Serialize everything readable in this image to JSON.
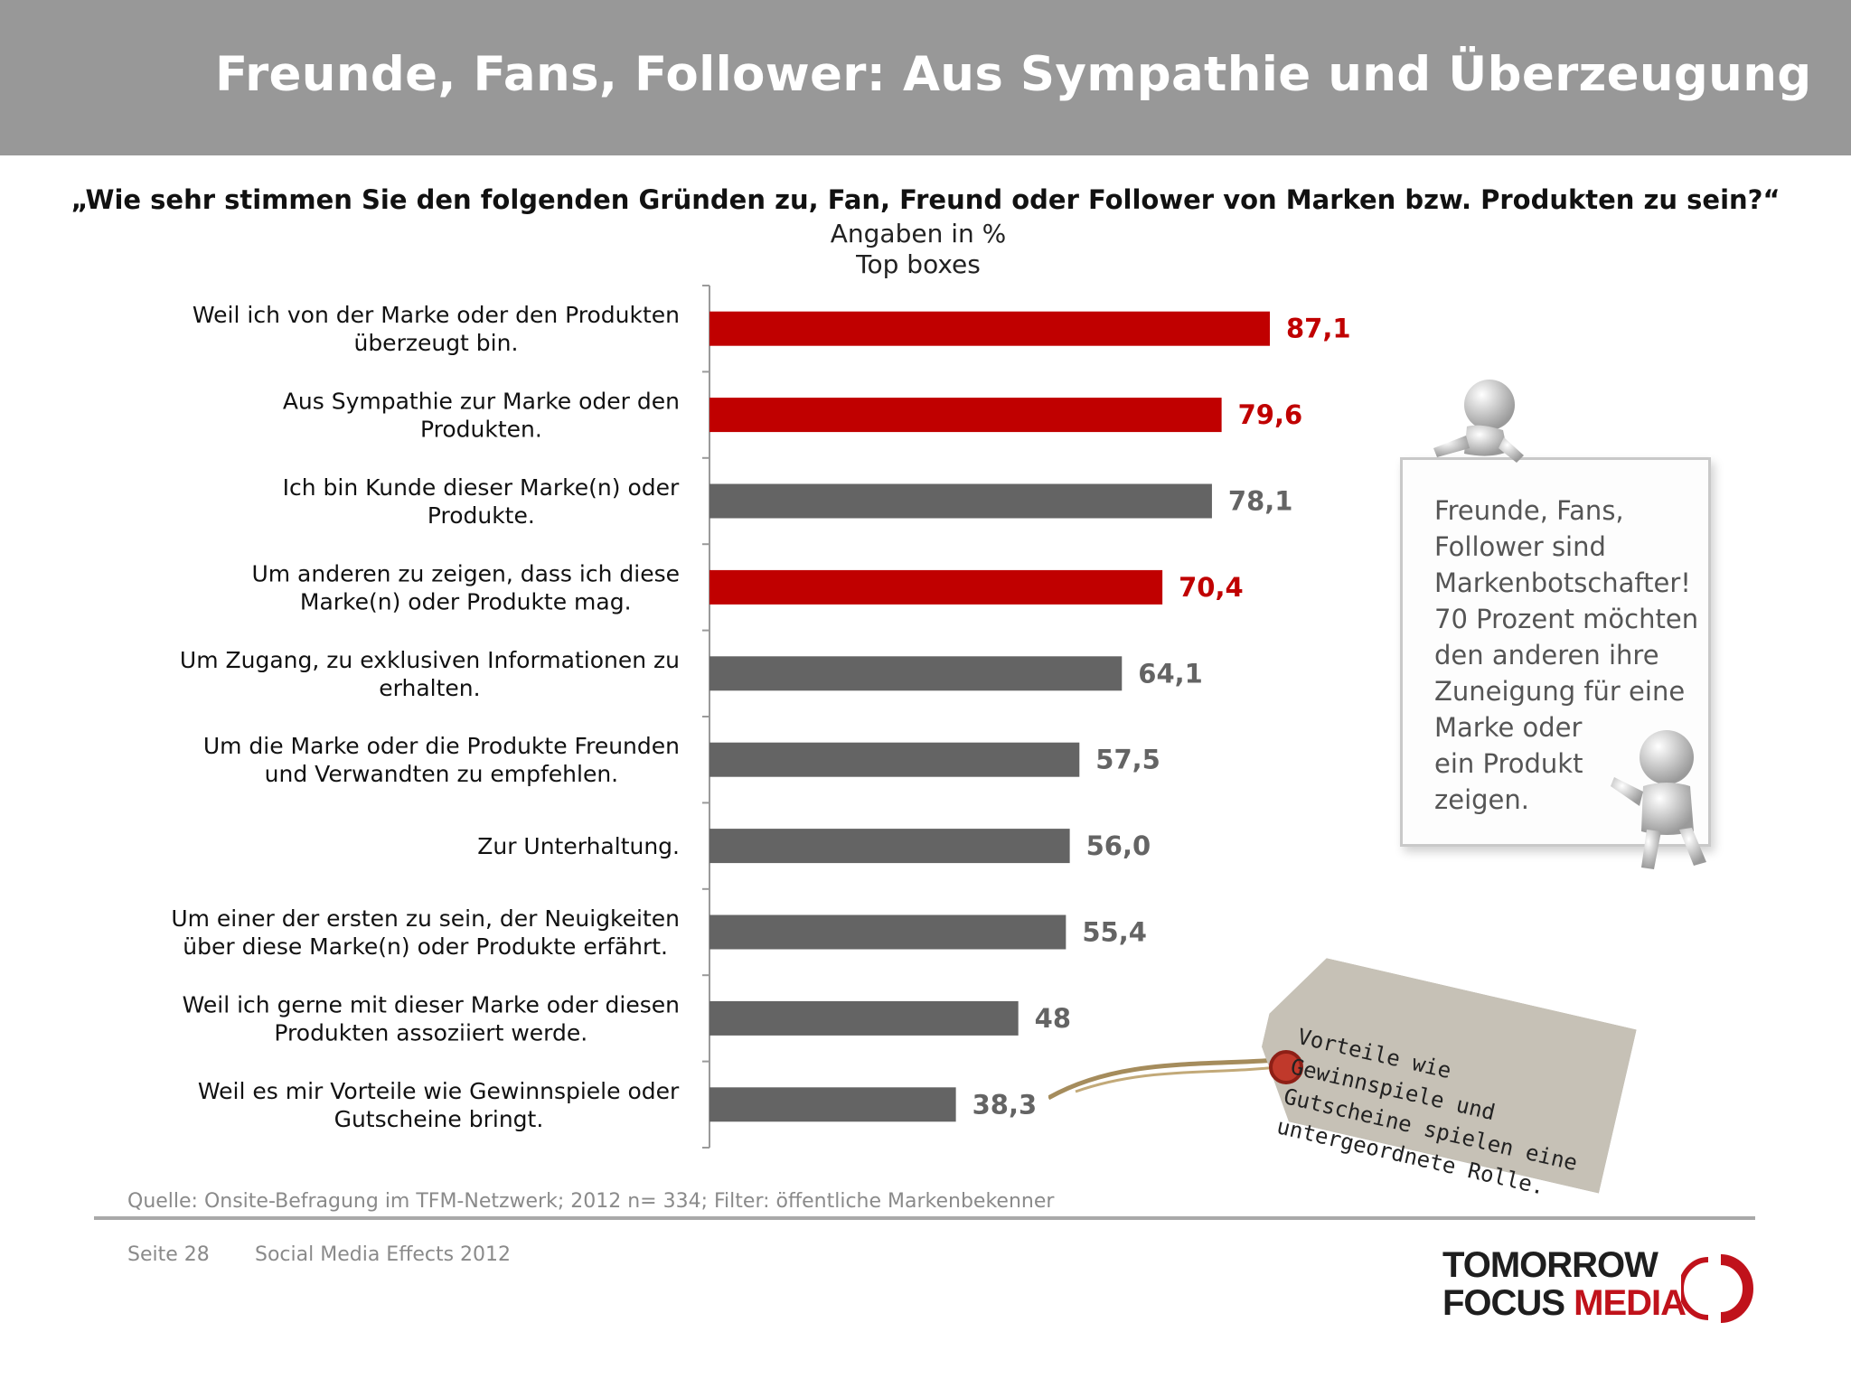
{
  "header": {
    "title": "Freunde, Fans, Follower: Aus Sympathie und Überzeugung"
  },
  "question": "„Wie sehr stimmen Sie den folgenden Gründen zu, Fan, Freund oder Follower von Marken bzw. Produkten zu sein?“",
  "subtitle_lines": [
    "Angaben in %",
    "Top boxes"
  ],
  "chart_data": {
    "type": "bar",
    "orientation": "horizontal",
    "categories": [
      [
        "Weil ich von der Marke oder den Produkten",
        "überzeugt bin."
      ],
      [
        "Aus Sympathie zur Marke oder den",
        "Produkten."
      ],
      [
        "Ich bin Kunde dieser Marke(n) oder",
        "Produkte."
      ],
      [
        "Um anderen zu zeigen, dass ich diese",
        "Marke(n) oder Produkte mag."
      ],
      [
        "Um Zugang, zu exklusiven Informationen zu",
        "erhalten."
      ],
      [
        "Um die Marke oder die Produkte Freunden",
        "und Verwandten zu empfehlen."
      ],
      [
        "Zur Unterhaltung."
      ],
      [
        "Um einer der ersten zu sein, der Neuigkeiten",
        "über diese Marke(n) oder Produkte erfährt."
      ],
      [
        "Weil ich gerne mit dieser Marke oder diesen",
        "Produkten assoziiert werde."
      ],
      [
        "Weil es mir Vorteile wie Gewinnspiele oder",
        "Gutscheine bringt."
      ]
    ],
    "values": [
      87.1,
      79.6,
      78.1,
      70.4,
      64.1,
      57.5,
      56.0,
      55.4,
      48,
      38.3
    ],
    "value_labels": [
      "87,1",
      "79,6",
      "78,1",
      "70,4",
      "64,1",
      "57,5",
      "56,0",
      "55,4",
      "48",
      "38,3"
    ],
    "highlighted": [
      true,
      true,
      false,
      true,
      false,
      false,
      false,
      false,
      false,
      false
    ],
    "xlim": [
      0,
      100
    ],
    "colors": {
      "highlight": "#c00000",
      "default": "#646464"
    },
    "grid": false,
    "legend": "none"
  },
  "callout": {
    "lines": [
      "Freunde, Fans,",
      "Follower sind",
      "Markenbotschafter!",
      "70 Prozent möchten",
      "den anderen ihre",
      "Zuneigung für eine",
      "Marke oder",
      "ein Produkt",
      "zeigen."
    ]
  },
  "tag": {
    "lines": [
      "Vorteile wie Gewinnspiele und",
      "Gutscheine spielen eine",
      "untergeordnete Rolle."
    ]
  },
  "source": "Quelle: Onsite-Befragung im TFM-Netzwerk; 2012 n= 334; Filter: öffentliche Markenbekenner",
  "footer": {
    "page": "Seite 28",
    "doc": "Social Media Effects 2012"
  },
  "logo": {
    "line1": "TOMORROW",
    "focus": "FOCUS",
    "media": "MEDIA"
  }
}
